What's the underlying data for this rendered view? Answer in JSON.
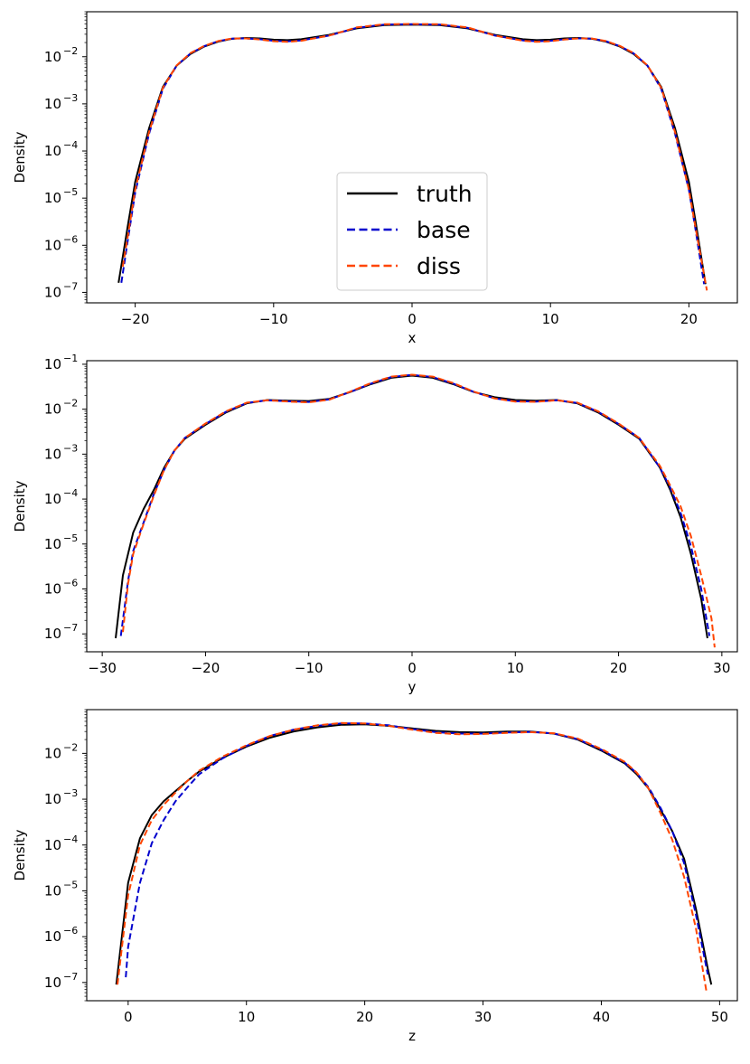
{
  "colors": {
    "truth": "#000000",
    "base": "#0000cd",
    "diss": "#ff4500"
  },
  "legend": {
    "panel": 0,
    "placement": "lower center",
    "entries": [
      {
        "series": "truth",
        "label": "truth"
      },
      {
        "series": "base",
        "label": "base"
      },
      {
        "series": "diss",
        "label": "diss"
      }
    ]
  },
  "chart_data": [
    {
      "type": "line",
      "xlabel": "x",
      "ylabel": "Density",
      "yscale": "log",
      "xlim": [
        -23.5,
        23.5
      ],
      "ylim": [
        6e-08,
        0.09
      ],
      "xticks": [
        -20,
        -10,
        0,
        10,
        20
      ],
      "xtick_labels": [
        "−20",
        "−10",
        "0",
        "10",
        "20"
      ],
      "yticks": [
        1e-07,
        1e-06,
        1e-05,
        0.0001,
        0.001,
        0.01
      ],
      "ytick_labels": [
        "10",
        "10",
        "10",
        "10",
        "10",
        "10"
      ],
      "ytick_exponents": [
        "−7",
        "−6",
        "−5",
        "−4",
        "−3",
        "−2"
      ],
      "grid": false,
      "series": [
        {
          "name": "truth",
          "style": "solid",
          "x": [
            -21.2,
            -20.5,
            -20,
            -19,
            -18,
            -17,
            -16,
            -15,
            -14,
            -13,
            -12,
            -11,
            -10,
            -9,
            -8,
            -6,
            -4,
            -2,
            0,
            2,
            4,
            6,
            8,
            9,
            10,
            11,
            12,
            13,
            14,
            15,
            16,
            17,
            18,
            19,
            20,
            20.5,
            21.2
          ],
          "y": [
            1.6e-07,
            3e-06,
            2.2e-05,
            0.0003,
            0.0023,
            0.0065,
            0.0115,
            0.0165,
            0.021,
            0.024,
            0.025,
            0.0245,
            0.023,
            0.0225,
            0.0235,
            0.029,
            0.04,
            0.047,
            0.048,
            0.047,
            0.04,
            0.029,
            0.0235,
            0.0225,
            0.023,
            0.0245,
            0.025,
            0.024,
            0.021,
            0.0165,
            0.0115,
            0.0065,
            0.0023,
            0.0003,
            2.2e-05,
            3e-06,
            1.5e-07
          ]
        },
        {
          "name": "base",
          "style": "dashed",
          "x": [
            -21,
            -20.5,
            -20,
            -19,
            -18,
            -17,
            -16,
            -15,
            -14,
            -13,
            -12,
            -11,
            -10,
            -9,
            -8,
            -6,
            -4,
            -2,
            0,
            2,
            4,
            6,
            8,
            9,
            10,
            11,
            12,
            13,
            14,
            15,
            16,
            17,
            18,
            19,
            20,
            20.5,
            21.1
          ],
          "y": [
            1.6e-07,
            1.5e-06,
            1.3e-05,
            0.00023,
            0.0021,
            0.0065,
            0.0118,
            0.0168,
            0.0213,
            0.0242,
            0.0245,
            0.0235,
            0.0218,
            0.0212,
            0.0222,
            0.028,
            0.041,
            0.048,
            0.049,
            0.048,
            0.041,
            0.028,
            0.0222,
            0.0212,
            0.0218,
            0.0235,
            0.0245,
            0.0242,
            0.0213,
            0.0168,
            0.0118,
            0.0065,
            0.0021,
            0.00023,
            1.5e-05,
            2e-06,
            1.5e-07
          ]
        },
        {
          "name": "diss",
          "style": "dashed",
          "x": [
            -20.9,
            -20.5,
            -20,
            -19,
            -18,
            -17,
            -16,
            -15,
            -14,
            -13,
            -12,
            -11,
            -10,
            -9,
            -8,
            -6,
            -4,
            -2,
            0,
            2,
            4,
            6,
            8,
            9,
            10,
            11,
            12,
            13,
            14,
            15,
            16,
            17,
            18,
            19,
            20,
            20.5,
            21.3
          ],
          "y": [
            3.5e-07,
            1.8e-06,
            1.5e-05,
            0.00025,
            0.0022,
            0.0066,
            0.012,
            0.017,
            0.0215,
            0.0243,
            0.0245,
            0.0232,
            0.0213,
            0.0207,
            0.0218,
            0.028,
            0.042,
            0.049,
            0.0495,
            0.049,
            0.042,
            0.028,
            0.0218,
            0.0207,
            0.0213,
            0.0232,
            0.0245,
            0.0243,
            0.0215,
            0.017,
            0.012,
            0.0066,
            0.0022,
            0.00025,
            1.5e-05,
            2.2e-06,
            1.1e-07
          ]
        }
      ]
    },
    {
      "type": "line",
      "xlabel": "y",
      "ylabel": "Density",
      "yscale": "log",
      "xlim": [
        -31.5,
        31.5
      ],
      "ylim": [
        4e-08,
        0.12
      ],
      "xticks": [
        -30,
        -20,
        -10,
        0,
        10,
        20,
        30
      ],
      "xtick_labels": [
        "−30",
        "−20",
        "−10",
        "0",
        "10",
        "20",
        "30"
      ],
      "yticks": [
        1e-07,
        1e-06,
        1e-05,
        0.0001,
        0.001,
        0.01,
        0.1
      ],
      "ytick_labels": [
        "10",
        "10",
        "10",
        "10",
        "10",
        "10",
        "10"
      ],
      "ytick_exponents": [
        "−7",
        "−6",
        "−5",
        "−4",
        "−3",
        "−2",
        "−1"
      ],
      "grid": false,
      "series": [
        {
          "name": "truth",
          "style": "solid",
          "x": [
            -28.7,
            -28,
            -27,
            -26,
            -25,
            -24,
            -23,
            -22,
            -20,
            -18,
            -16,
            -14,
            -12,
            -10,
            -8,
            -6,
            -4,
            -2,
            0,
            2,
            4,
            6,
            8,
            10,
            12,
            14,
            16,
            18,
            20,
            22,
            24,
            25,
            26,
            27,
            28,
            28.6
          ],
          "y": [
            8e-08,
            2e-06,
            1.8e-05,
            6e-05,
            0.00016,
            0.0005,
            0.0012,
            0.0022,
            0.0045,
            0.0085,
            0.0135,
            0.016,
            0.0155,
            0.0152,
            0.017,
            0.024,
            0.036,
            0.05,
            0.056,
            0.05,
            0.036,
            0.024,
            0.0185,
            0.016,
            0.0155,
            0.016,
            0.0135,
            0.0085,
            0.0045,
            0.0022,
            0.0005,
            0.00016,
            4e-05,
            6e-06,
            6e-07,
            8e-08
          ]
        },
        {
          "name": "base",
          "style": "dashed",
          "x": [
            -28.2,
            -27.5,
            -27,
            -26,
            -25,
            -24,
            -23,
            -22,
            -20,
            -18,
            -16,
            -14,
            -12,
            -10,
            -8,
            -6,
            -4,
            -2,
            0,
            2,
            4,
            6,
            8,
            10,
            12,
            14,
            16,
            18,
            20,
            22,
            24,
            25,
            26,
            27,
            28,
            28.8
          ],
          "y": [
            9e-08,
            1.5e-06,
            7e-06,
            3e-05,
            0.00013,
            0.00045,
            0.0012,
            0.0023,
            0.0047,
            0.0088,
            0.0138,
            0.0158,
            0.015,
            0.0145,
            0.0165,
            0.024,
            0.037,
            0.052,
            0.058,
            0.052,
            0.037,
            0.024,
            0.0175,
            0.015,
            0.0148,
            0.0158,
            0.0138,
            0.0088,
            0.0047,
            0.0023,
            0.0005,
            0.00018,
            5e-05,
            9e-06,
            1e-06,
            9e-08
          ]
        },
        {
          "name": "diss",
          "style": "dashed",
          "x": [
            -28,
            -27.5,
            -27,
            -26,
            -25,
            -24,
            -23,
            -22,
            -20,
            -18,
            -16,
            -14,
            -12,
            -10,
            -8,
            -6,
            -4,
            -2,
            0,
            2,
            4,
            6,
            8,
            10,
            12,
            14,
            16,
            18,
            20,
            22,
            24,
            25,
            26,
            27,
            28,
            29,
            29.3
          ],
          "y": [
            1.1e-07,
            1.3e-06,
            6e-06,
            2.8e-05,
            0.00012,
            0.00045,
            0.0012,
            0.0023,
            0.0048,
            0.009,
            0.014,
            0.0158,
            0.0148,
            0.0142,
            0.0163,
            0.0245,
            0.038,
            0.053,
            0.0585,
            0.053,
            0.038,
            0.0245,
            0.0173,
            0.0148,
            0.0146,
            0.0158,
            0.014,
            0.009,
            0.0048,
            0.0023,
            0.00055,
            0.0002,
            7e-05,
            1.5e-05,
            2e-06,
            2.2e-07,
            5e-08
          ]
        }
      ]
    },
    {
      "type": "line",
      "xlabel": "z",
      "ylabel": "Density",
      "yscale": "log",
      "xlim": [
        -3.5,
        51.5
      ],
      "ylim": [
        4e-08,
        0.09
      ],
      "xticks": [
        0,
        10,
        20,
        30,
        40,
        50
      ],
      "xtick_labels": [
        "0",
        "10",
        "20",
        "30",
        "40",
        "50"
      ],
      "yticks": [
        1e-07,
        1e-06,
        1e-05,
        0.0001,
        0.001,
        0.01
      ],
      "ytick_labels": [
        "10",
        "10",
        "10",
        "10",
        "10",
        "10"
      ],
      "ytick_exponents": [
        "−7",
        "−6",
        "−5",
        "−4",
        "−3",
        "−2"
      ],
      "grid": false,
      "series": [
        {
          "name": "truth",
          "style": "solid",
          "x": [
            -1,
            0,
            1,
            2,
            3,
            4,
            5,
            6,
            8,
            10,
            12,
            14,
            16,
            18,
            20,
            22,
            24,
            26,
            28,
            30,
            32,
            34,
            36,
            38,
            40,
            42,
            43,
            44,
            45,
            46,
            47,
            48,
            49,
            49.3
          ],
          "y": [
            9e-08,
            1.5e-05,
            0.00014,
            0.00045,
            0.0009,
            0.0015,
            0.0025,
            0.004,
            0.008,
            0.014,
            0.022,
            0.03,
            0.037,
            0.042,
            0.043,
            0.04,
            0.035,
            0.031,
            0.029,
            0.0285,
            0.03,
            0.03,
            0.027,
            0.02,
            0.0115,
            0.006,
            0.0035,
            0.0017,
            0.0006,
            0.0002,
            5e-05,
            4e-06,
            2e-07,
            9e-08
          ]
        },
        {
          "name": "base",
          "style": "dashed",
          "x": [
            -0.2,
            0,
            1,
            2,
            3,
            4,
            5,
            6,
            8,
            10,
            12,
            14,
            16,
            18,
            20,
            22,
            24,
            26,
            28,
            30,
            32,
            34,
            36,
            38,
            40,
            42,
            43,
            44,
            45,
            46,
            47,
            48,
            49
          ],
          "y": [
            1.3e-07,
            6e-07,
            1.5e-05,
            0.00011,
            0.00035,
            0.0009,
            0.0018,
            0.0035,
            0.0078,
            0.0145,
            0.024,
            0.033,
            0.04,
            0.045,
            0.045,
            0.041,
            0.034,
            0.029,
            0.027,
            0.027,
            0.0285,
            0.0295,
            0.027,
            0.0205,
            0.012,
            0.0062,
            0.0037,
            0.0018,
            0.00065,
            0.0002,
            4e-05,
            3e-06,
            1.5e-07
          ]
        },
        {
          "name": "diss",
          "style": "dashed",
          "x": [
            -0.9,
            0,
            1,
            2,
            3,
            4,
            5,
            6,
            8,
            10,
            12,
            14,
            16,
            18,
            20,
            22,
            24,
            26,
            28,
            30,
            32,
            34,
            36,
            38,
            40,
            42,
            43,
            44,
            45,
            46,
            47,
            48,
            48.9
          ],
          "y": [
            9e-08,
            8e-06,
            0.0001,
            0.00035,
            0.00075,
            0.0014,
            0.0025,
            0.0042,
            0.0085,
            0.015,
            0.024,
            0.033,
            0.041,
            0.046,
            0.045,
            0.04,
            0.033,
            0.028,
            0.026,
            0.0265,
            0.028,
            0.029,
            0.0275,
            0.021,
            0.0125,
            0.0065,
            0.0038,
            0.0017,
            0.0005,
            0.00013,
            2e-05,
            1.5e-06,
            6e-08
          ]
        }
      ]
    }
  ]
}
